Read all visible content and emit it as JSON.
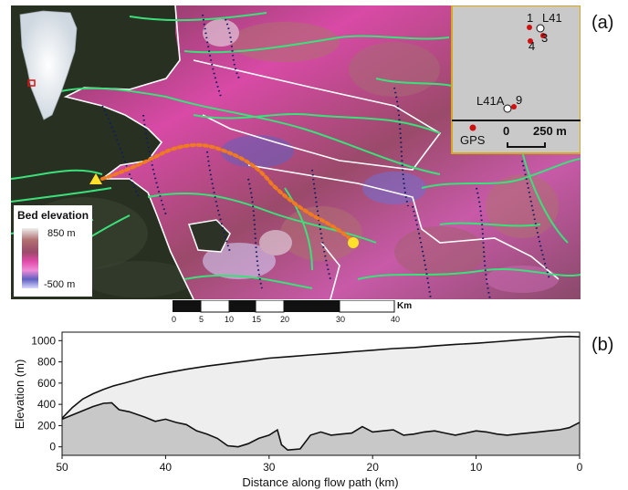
{
  "panels": {
    "a": "(a)",
    "b": "(b)"
  },
  "legend": {
    "title": "Bed elevation",
    "max_label": "850 m",
    "min_label": "-500 m",
    "colors": [
      "#eeeeee",
      "#b07070",
      "#9a4a6a",
      "#e04aa8",
      "#f08cd8",
      "#6060c0",
      "#d8d8ff"
    ]
  },
  "inset": {
    "site_labels": [
      "1",
      "L41",
      "3",
      "4",
      "L41A",
      "9"
    ],
    "legend_label": "GPS",
    "scale_zero": "0",
    "scale_value": "250 m",
    "gps_color": "#d01010"
  },
  "scalebar": {
    "unit": "Km",
    "ticks": [
      "0",
      "5",
      "10",
      "15",
      "20",
      "30",
      "40"
    ]
  },
  "colors": {
    "flowlines": "#3ce07a",
    "dotted_lines": "#101a60",
    "outline": "#ffffff",
    "flow_path": "#f07a20",
    "start_marker": "#ffe02a"
  },
  "chart_data": {
    "type": "area",
    "xlabel": "Distance along flow path (km)",
    "ylabel": "Elevation (m)",
    "xlim": [
      50,
      0
    ],
    "ylim": [
      -80,
      1080
    ],
    "x_ticks": [
      50,
      40,
      30,
      20,
      10,
      0
    ],
    "y_ticks": [
      0,
      200,
      400,
      600,
      800,
      1000
    ],
    "grid": false,
    "series": [
      {
        "color": "#111111",
        "fill": "#eeeeee",
        "x": [
          50,
          49,
          48,
          47,
          46,
          45,
          44,
          42,
          40,
          38,
          36,
          34,
          32,
          30,
          28,
          26,
          24,
          22,
          20,
          18,
          16,
          14,
          12,
          10,
          8,
          6,
          4,
          2,
          1,
          0
        ],
        "y": [
          270,
          370,
          450,
          500,
          540,
          575,
          600,
          655,
          695,
          730,
          760,
          785,
          810,
          835,
          850,
          865,
          880,
          895,
          910,
          925,
          935,
          950,
          965,
          975,
          990,
          1005,
          1020,
          1035,
          1040,
          1035
        ]
      },
      {
        "color": "#111111",
        "fill": "#c8c8c8",
        "x": [
          50,
          49,
          48,
          47,
          46,
          45.2,
          44.5,
          43.5,
          42,
          41,
          40,
          39,
          38,
          37,
          36,
          35,
          34,
          33,
          32,
          31,
          30,
          29.2,
          28.8,
          28.2,
          27,
          26,
          25,
          24,
          23,
          22,
          21,
          20,
          19,
          18,
          17,
          16,
          15,
          14,
          13,
          12,
          11,
          10,
          9,
          8,
          7,
          6,
          5,
          4,
          3,
          2,
          1,
          0
        ],
        "y": [
          260,
          300,
          340,
          380,
          410,
          415,
          350,
          330,
          280,
          240,
          260,
          230,
          210,
          150,
          120,
          80,
          10,
          0,
          30,
          80,
          110,
          160,
          20,
          -30,
          -20,
          110,
          140,
          110,
          120,
          130,
          190,
          140,
          150,
          160,
          110,
          120,
          140,
          150,
          130,
          110,
          130,
          150,
          140,
          120,
          110,
          120,
          130,
          140,
          150,
          160,
          180,
          230
        ]
      }
    ]
  }
}
